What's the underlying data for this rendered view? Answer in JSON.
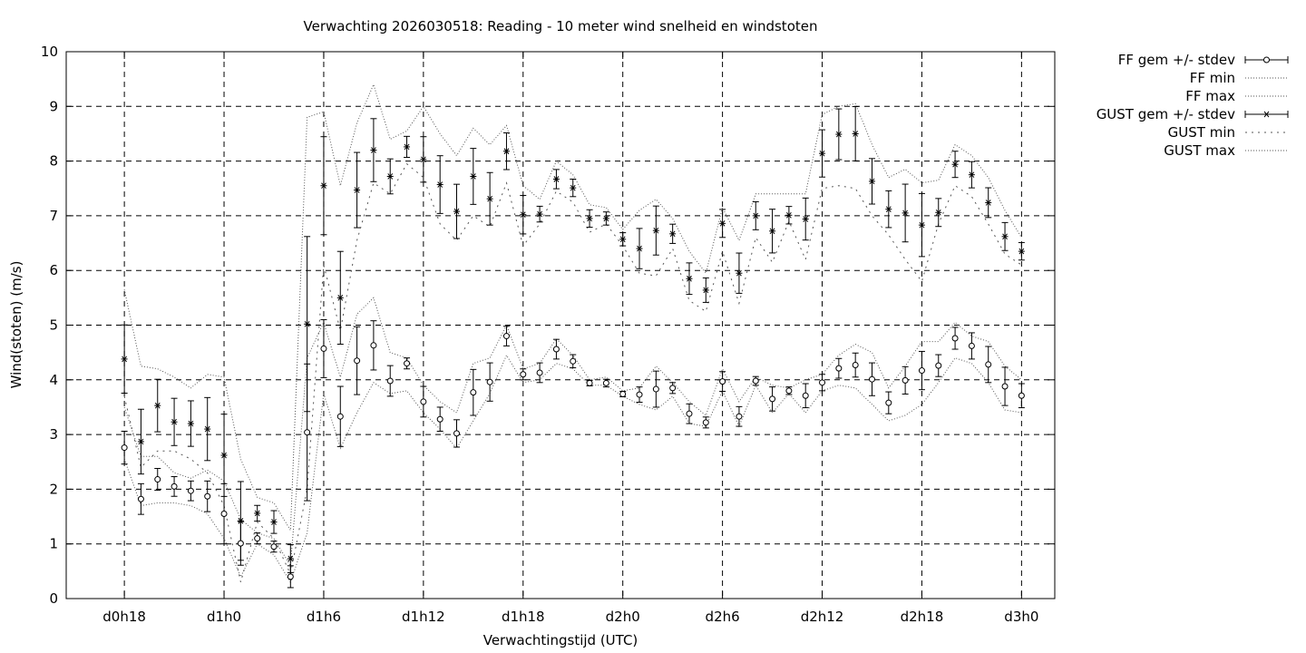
{
  "chart_data": {
    "type": "line",
    "title": "Verwachting 2026030518: Reading - 10 meter wind snelheid en windstoten",
    "xlabel": "Verwachtingstijd (UTC)",
    "ylabel": "Wind(stoten) (m/s)",
    "x_ticks": [
      "d0h18",
      "d1h0",
      "d1h6",
      "d1h12",
      "d1h18",
      "d2h0",
      "d2h6",
      "d2h12",
      "d2h18",
      "d3h0"
    ],
    "x_tick_hours": [
      18,
      24,
      30,
      36,
      42,
      48,
      54,
      60,
      66,
      72
    ],
    "xlim": [
      14.5,
      74
    ],
    "ylim": [
      0,
      10
    ],
    "y_ticks": [
      "0",
      "1",
      "2",
      "3",
      "4",
      "5",
      "6",
      "7",
      "8",
      "9",
      "10"
    ],
    "grid": true,
    "legend_position": "outside-right",
    "x": [
      18,
      19,
      20,
      21,
      22,
      23,
      24,
      25,
      26,
      27,
      28,
      29,
      30,
      31,
      32,
      33,
      34,
      35,
      36,
      37,
      38,
      39,
      40,
      41,
      42,
      43,
      44,
      45,
      46,
      47,
      48,
      49,
      50,
      51,
      52,
      53,
      54,
      55,
      56,
      57,
      58,
      59,
      60,
      61,
      62,
      63,
      64,
      65,
      66,
      67,
      68,
      69,
      70,
      71,
      72
    ],
    "series": [
      {
        "name": "FF gem +/- stdev",
        "marker": "circle",
        "values": [
          2.76,
          1.82,
          2.18,
          2.05,
          1.97,
          1.87,
          1.55,
          1.01,
          1.1,
          0.95,
          0.4,
          3.04,
          4.57,
          3.33,
          4.35,
          4.63,
          3.98,
          4.3,
          3.6,
          3.28,
          3.02,
          3.77,
          3.96,
          4.8,
          4.1,
          4.13,
          4.56,
          4.34,
          3.94,
          3.94,
          3.74,
          3.73,
          3.83,
          3.85,
          3.38,
          3.22,
          3.97,
          3.33,
          3.98,
          3.65,
          3.8,
          3.71,
          3.95,
          4.21,
          4.27,
          4.01,
          3.58,
          3.99,
          4.17,
          4.26,
          4.76,
          4.62,
          4.28,
          3.88,
          3.71
        ],
        "stdev": [
          0.3,
          0.28,
          0.2,
          0.18,
          0.18,
          0.28,
          0.55,
          0.4,
          0.1,
          0.1,
          0.2,
          1.25,
          0.53,
          0.55,
          0.62,
          0.45,
          0.28,
          0.1,
          0.28,
          0.22,
          0.25,
          0.42,
          0.35,
          0.18,
          0.1,
          0.18,
          0.18,
          0.12,
          0.05,
          0.07,
          0.05,
          0.14,
          0.33,
          0.1,
          0.18,
          0.1,
          0.18,
          0.18,
          0.08,
          0.22,
          0.07,
          0.22,
          0.15,
          0.18,
          0.22,
          0.3,
          0.2,
          0.25,
          0.35,
          0.2,
          0.2,
          0.24,
          0.33,
          0.35,
          0.22
        ]
      },
      {
        "name": "FF min",
        "values": [
          2.55,
          1.7,
          1.75,
          1.75,
          1.7,
          1.55,
          1.1,
          0.4,
          1.0,
          0.8,
          0.3,
          1.2,
          3.75,
          2.75,
          3.4,
          3.95,
          3.75,
          3.8,
          3.4,
          3.1,
          2.75,
          3.25,
          3.75,
          4.45,
          3.95,
          4.0,
          4.3,
          4.2,
          3.9,
          3.9,
          3.7,
          3.55,
          3.45,
          3.7,
          3.2,
          3.15,
          3.8,
          3.15,
          3.9,
          3.4,
          3.75,
          3.4,
          3.8,
          3.9,
          3.85,
          3.55,
          3.25,
          3.35,
          3.55,
          3.95,
          4.4,
          4.3,
          3.95,
          3.45,
          3.4
        ]
      },
      {
        "name": "FF max",
        "values": [
          3.5,
          2.6,
          2.6,
          2.3,
          2.2,
          2.35,
          2.15,
          1.45,
          1.2,
          1.1,
          0.6,
          4.4,
          5.05,
          4.05,
          5.2,
          5.5,
          4.5,
          4.4,
          3.9,
          3.6,
          3.4,
          4.3,
          4.4,
          5.0,
          4.2,
          4.3,
          4.75,
          4.45,
          4.0,
          4.05,
          3.8,
          3.85,
          4.25,
          3.95,
          3.6,
          3.35,
          4.2,
          3.6,
          4.05,
          3.9,
          3.85,
          4.0,
          4.1,
          4.45,
          4.65,
          4.5,
          3.85,
          4.25,
          4.7,
          4.7,
          5.05,
          4.8,
          4.7,
          4.25,
          4.0
        ]
      },
      {
        "name": "GUST gem +/- stdev",
        "marker": "star",
        "values": [
          4.38,
          2.87,
          3.53,
          3.23,
          3.2,
          3.1,
          2.62,
          1.42,
          1.56,
          1.4,
          0.73,
          5.02,
          7.55,
          5.5,
          7.47,
          8.2,
          7.72,
          8.26,
          8.03,
          7.57,
          7.08,
          7.72,
          7.31,
          8.18,
          7.02,
          7.03,
          7.67,
          7.51,
          6.95,
          6.95,
          6.57,
          6.4,
          6.73,
          6.67,
          5.85,
          5.64,
          6.86,
          5.95,
          7.0,
          6.72,
          7.01,
          6.94,
          8.14,
          8.49,
          8.5,
          7.63,
          7.12,
          7.05,
          6.83,
          7.06,
          7.94,
          7.75,
          7.24,
          6.62,
          6.35
        ]
      },
      {
        "name": "GUST min",
        "values": [
          3.7,
          2.4,
          2.7,
          2.7,
          2.55,
          2.3,
          1.7,
          0.3,
          1.4,
          1.1,
          0.45,
          2.0,
          6.1,
          4.9,
          6.55,
          7.6,
          7.4,
          7.95,
          7.7,
          6.85,
          6.55,
          7.0,
          6.8,
          7.6,
          6.45,
          6.85,
          7.45,
          7.25,
          6.7,
          6.85,
          6.45,
          5.95,
          5.9,
          6.4,
          5.45,
          5.25,
          6.35,
          5.4,
          6.6,
          6.15,
          6.9,
          6.2,
          7.5,
          7.55,
          7.5,
          7.0,
          6.65,
          6.2,
          5.8,
          6.85,
          7.55,
          7.35,
          6.85,
          6.3,
          6.1
        ]
      },
      {
        "name": "GUST max",
        "values": [
          5.65,
          4.25,
          4.2,
          4.05,
          3.85,
          4.1,
          4.05,
          2.55,
          1.85,
          1.75,
          1.25,
          8.8,
          8.9,
          7.55,
          8.7,
          9.4,
          8.4,
          8.55,
          9.0,
          8.5,
          8.1,
          8.6,
          8.3,
          8.65,
          7.55,
          7.3,
          8.0,
          7.75,
          7.2,
          7.15,
          6.75,
          7.1,
          7.3,
          6.95,
          6.35,
          5.95,
          7.15,
          6.55,
          7.4,
          7.4,
          7.4,
          7.4,
          8.85,
          9.0,
          9.05,
          8.3,
          7.7,
          7.85,
          7.6,
          7.65,
          8.3,
          8.1,
          7.7,
          7.1,
          6.6
        ]
      }
    ]
  }
}
